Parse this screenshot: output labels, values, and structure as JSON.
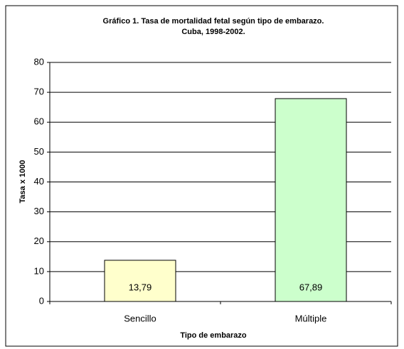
{
  "chart_data": {
    "type": "bar",
    "title": [
      "Gráfico 1. Tasa de mortalidad fetal según tipo de embarazo.",
      "Cuba, 1998-2002."
    ],
    "x_label": "Tipo de embarazo",
    "y_label": "Tasa x 1000",
    "categories": [
      "Sencillo",
      "Múltiple"
    ],
    "values": [
      13.79,
      67.89
    ],
    "value_labels": [
      "13,79",
      "67,89"
    ],
    "colors": [
      "#ffffcc",
      "#ccffcc"
    ],
    "ylim": [
      0,
      80
    ],
    "yticks": [
      0,
      10,
      20,
      30,
      40,
      50,
      60,
      70,
      80
    ],
    "grid": true
  }
}
